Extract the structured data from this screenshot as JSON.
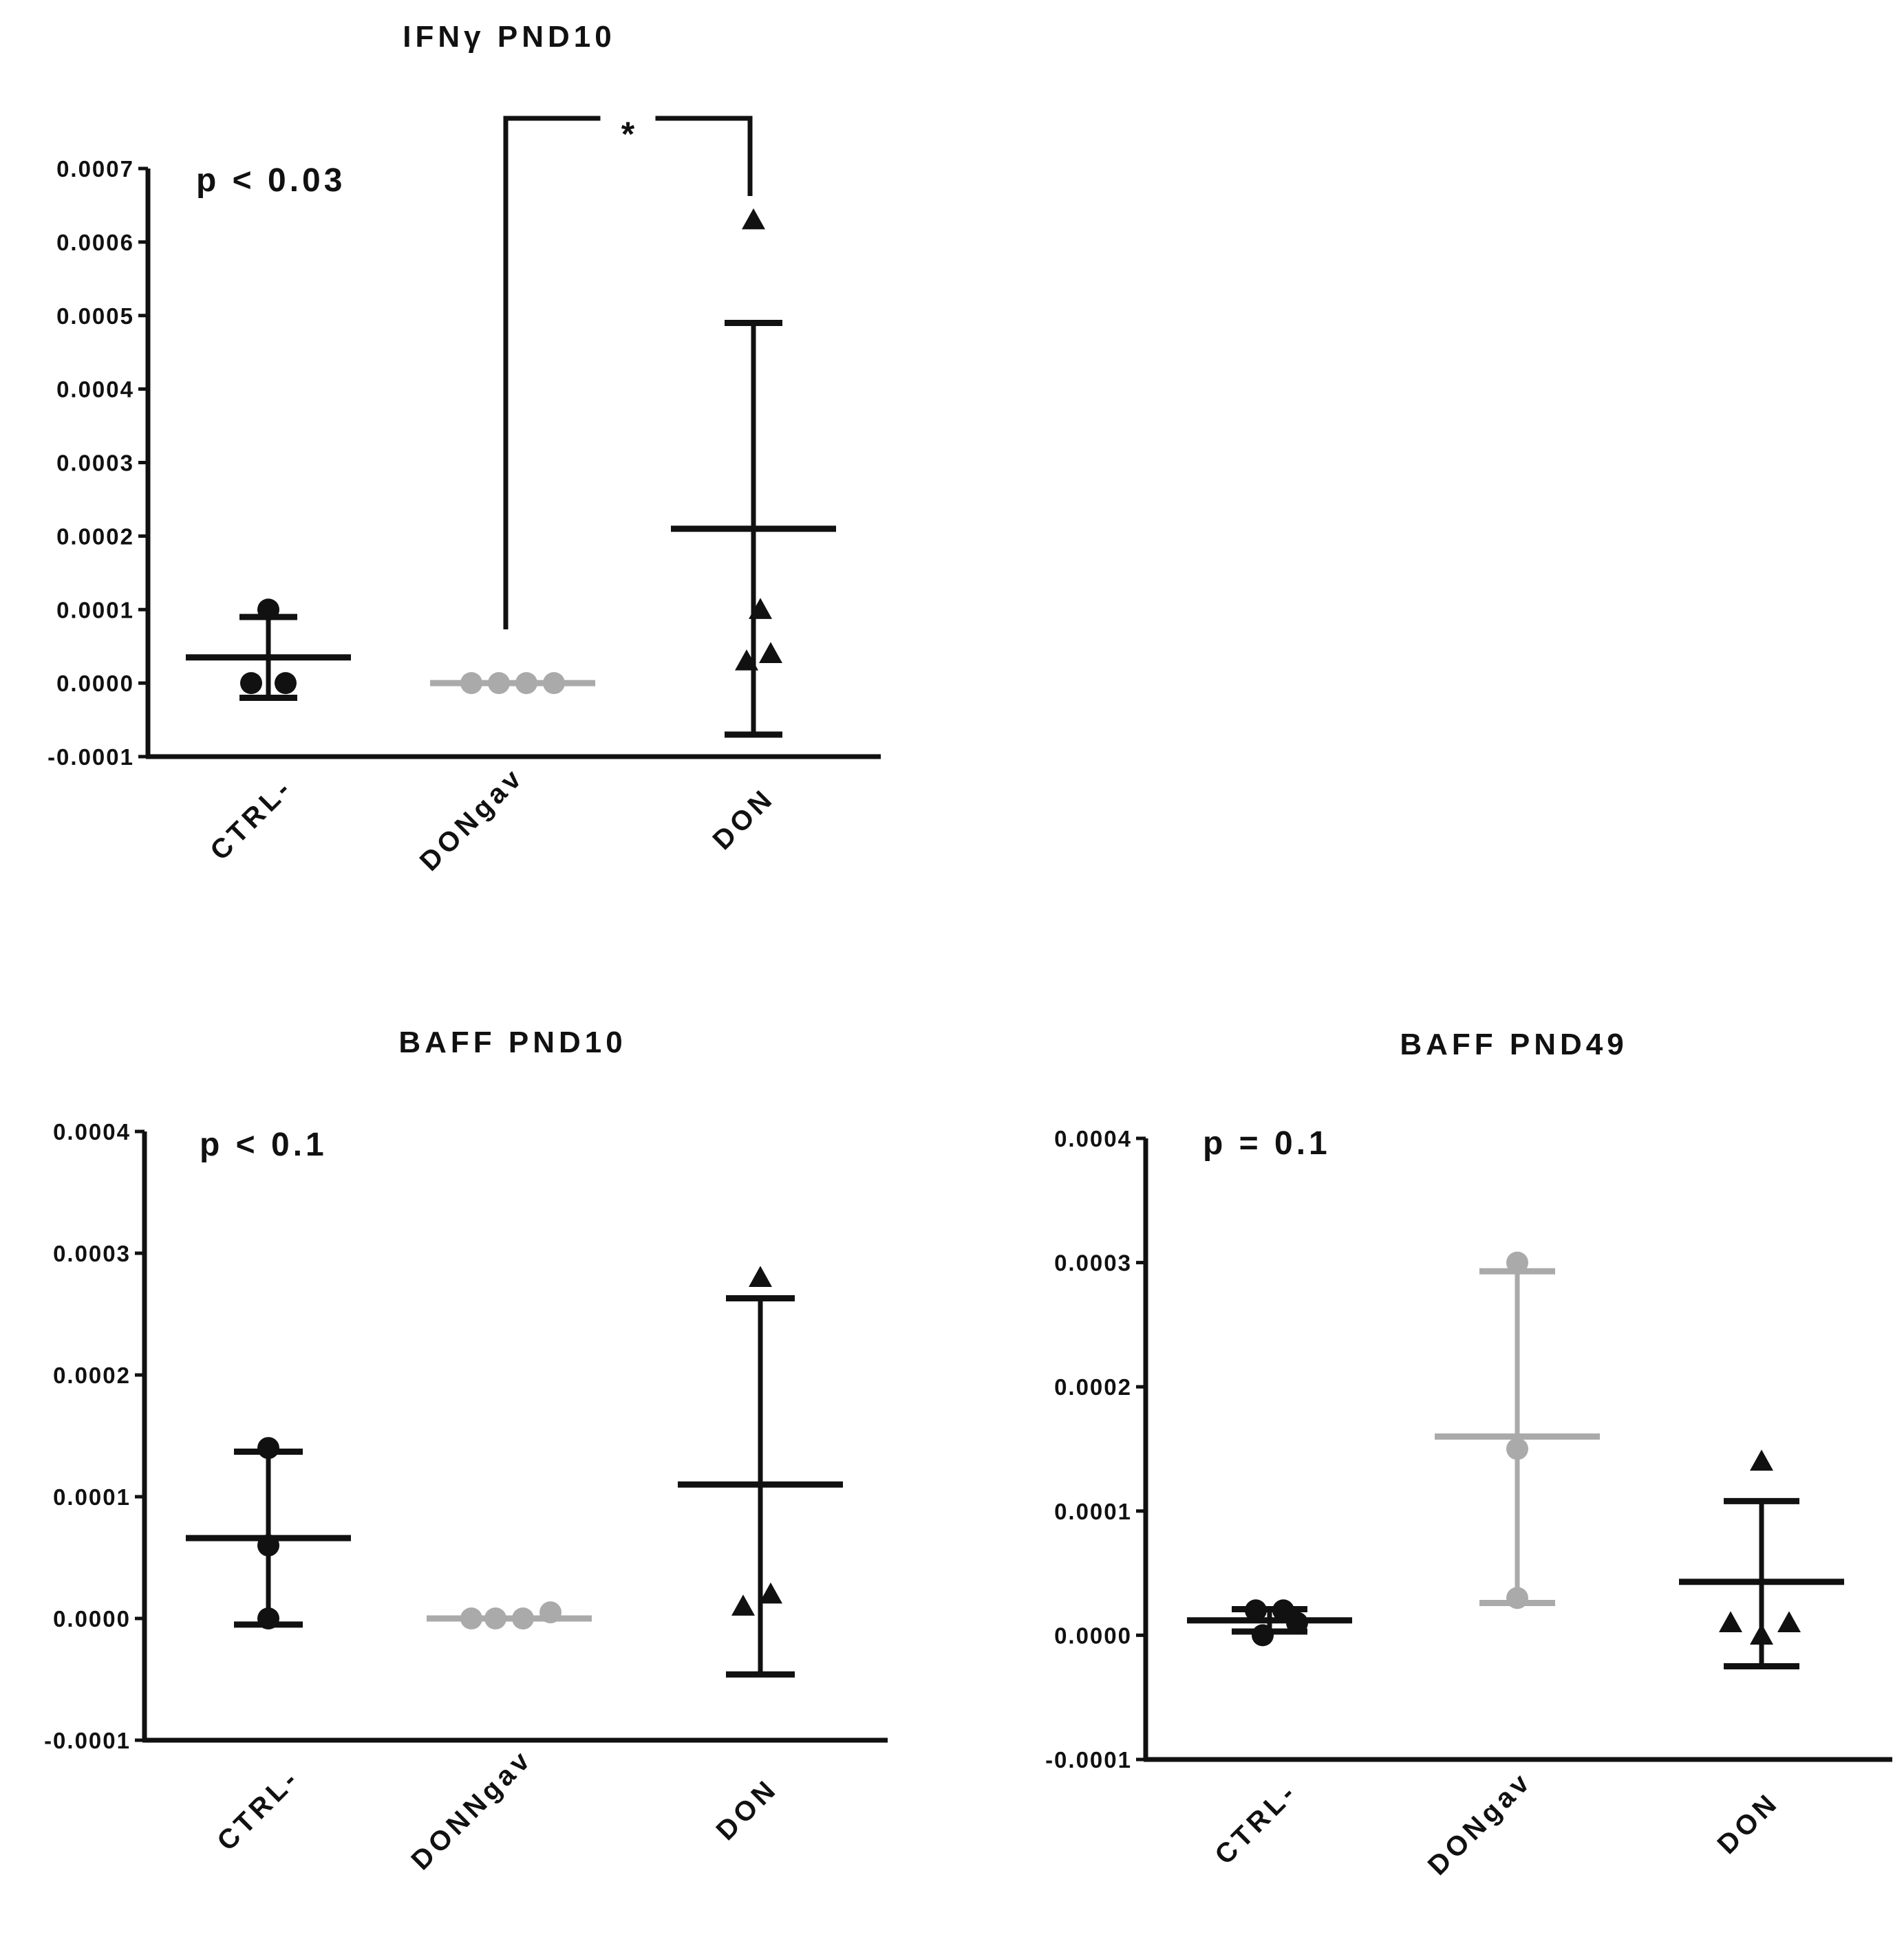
{
  "figure": {
    "panel_count": 3
  },
  "colors": {
    "black": "#111111",
    "gray": "#aaaaaa"
  },
  "chart_data": [
    {
      "type": "scatter",
      "title": "IFNγ PND10",
      "annotation": "p < 0.03",
      "significance": {
        "from": "DONgav",
        "to": "DON",
        "label": "*"
      },
      "ylim": [
        -0.0001,
        0.0007
      ],
      "yticks": [
        "-0.0001",
        "0.0000",
        "0.0001",
        "0.0002",
        "0.0003",
        "0.0004",
        "0.0005",
        "0.0006",
        "0.0007"
      ],
      "categories": [
        "CTRL-",
        "DONgav",
        "DON"
      ],
      "groups": [
        {
          "name": "CTRL-",
          "marker": "circle",
          "color": "#111111",
          "points": [
            0.0,
            0.0,
            0.0001
          ],
          "mean": 3.5e-05,
          "err_low": -2e-05,
          "err_high": 9e-05
        },
        {
          "name": "DONgav",
          "marker": "circle",
          "color": "#aaaaaa",
          "points": [
            0.0,
            0.0,
            0.0,
            0.0
          ],
          "mean": 0.0,
          "err_low": 0.0,
          "err_high": 0.0
        },
        {
          "name": "DON",
          "marker": "triangle",
          "color": "#111111",
          "points": [
            3e-05,
            4e-05,
            0.0001,
            0.00063
          ],
          "mean": 0.00021,
          "err_low": -7e-05,
          "err_high": 0.00049
        }
      ]
    },
    {
      "type": "scatter",
      "title": "BAFF PND10",
      "annotation": "p < 0.1",
      "ylim": [
        -0.0001,
        0.0004
      ],
      "yticks": [
        "-0.0001",
        "0.0000",
        "0.0001",
        "0.0002",
        "0.0003",
        "0.0004"
      ],
      "categories": [
        "CTRL-",
        "DONNgav",
        "DON"
      ],
      "groups": [
        {
          "name": "CTRL-",
          "marker": "circle",
          "color": "#111111",
          "points": [
            0.0,
            6e-05,
            0.00014
          ],
          "mean": 6.6e-05,
          "err_low": -5e-06,
          "err_high": 0.000137
        },
        {
          "name": "DONNgav",
          "marker": "circle",
          "color": "#aaaaaa",
          "points": [
            0.0,
            0.0,
            0.0,
            5e-06
          ],
          "mean": 0.0,
          "err_low": 0.0,
          "err_high": 0.0
        },
        {
          "name": "DON",
          "marker": "triangle",
          "color": "#111111",
          "points": [
            1e-05,
            2e-05,
            0.00028
          ],
          "mean": 0.00011,
          "err_low": -4.6e-05,
          "err_high": 0.000263
        }
      ]
    },
    {
      "type": "scatter",
      "title": "BAFF PND49",
      "annotation": "p = 0.1",
      "ylim": [
        -0.0001,
        0.0004
      ],
      "yticks": [
        "-0.0001",
        "0.0000",
        "0.0001",
        "0.0002",
        "0.0003",
        "0.0004"
      ],
      "categories": [
        "CTRL-",
        "DONgav",
        "DON"
      ],
      "groups": [
        {
          "name": "CTRL-",
          "marker": "circle",
          "color": "#111111",
          "points": [
            0.0,
            1e-05,
            2e-05,
            2e-05
          ],
          "mean": 1.2e-05,
          "err_low": 3e-06,
          "err_high": 2.1e-05
        },
        {
          "name": "DONgav",
          "marker": "circle",
          "color": "#aaaaaa",
          "points": [
            3e-05,
            0.00015,
            0.0003
          ],
          "mean": 0.00016,
          "err_low": 2.6e-05,
          "err_high": 0.000293
        },
        {
          "name": "DON",
          "marker": "triangle",
          "color": "#111111",
          "points": [
            0.0,
            1e-05,
            1e-05,
            0.00014
          ],
          "mean": 4.3e-05,
          "err_low": -2.5e-05,
          "err_high": 0.000108
        }
      ]
    }
  ]
}
